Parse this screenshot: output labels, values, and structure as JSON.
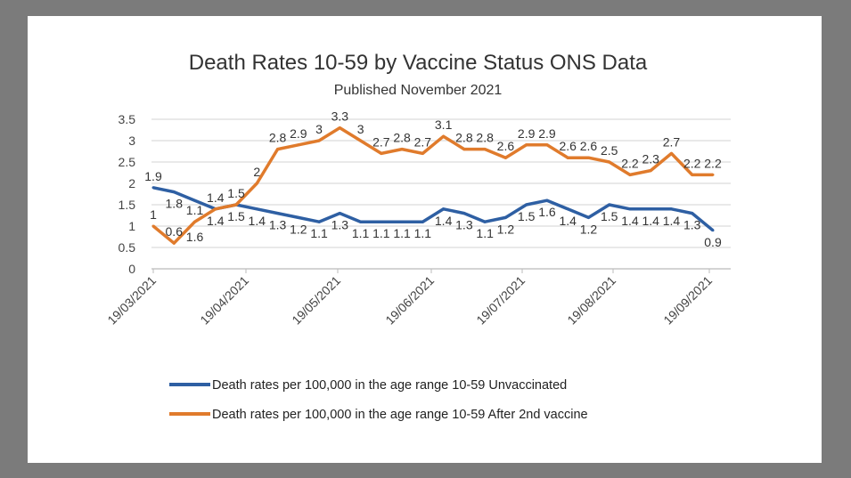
{
  "chart_data": {
    "type": "line",
    "title": "Death Rates 10-59  by Vaccine Status ONS Data",
    "subtitle": "Published November 2021",
    "xlabel": "",
    "ylabel": "",
    "ylim": [
      0,
      3.5
    ],
    "y_ticks": [
      "0",
      "0.5",
      "1",
      "1.5",
      "2",
      "2.5",
      "3",
      "3.5"
    ],
    "x_tick_labels": [
      "19/03/2021",
      "19/04/2021",
      "19/05/2021",
      "19/06/2021",
      "19/07/2021",
      "19/08/2021",
      "19/09/2021"
    ],
    "grid": true,
    "legend_placement": "bottom",
    "series": [
      {
        "name": "Death rates per 100,000 in the age range 10-59 Unvaccinated",
        "color": "#2e5fa3",
        "values": [
          1.9,
          1.8,
          1.6,
          1.4,
          1.5,
          1.4,
          1.3,
          1.2,
          1.1,
          1.3,
          1.1,
          1.1,
          1.1,
          1.1,
          1.4,
          1.3,
          1.1,
          1.2,
          1.5,
          1.6,
          1.4,
          1.2,
          1.5,
          1.4,
          1.4,
          1.4,
          1.3,
          0.9
        ]
      },
      {
        "name": "Death rates per 100,000 in the age range 10-59 After 2nd  vaccine",
        "color": "#e07b2c",
        "values": [
          1,
          0.6,
          1.1,
          1.4,
          1.5,
          2,
          2.8,
          2.9,
          3,
          3.3,
          3,
          2.7,
          2.8,
          2.7,
          3.1,
          2.8,
          2.8,
          2.6,
          2.9,
          2.9,
          2.6,
          2.6,
          2.5,
          2.2,
          2.3,
          2.7,
          2.2,
          2.2
        ]
      }
    ]
  }
}
